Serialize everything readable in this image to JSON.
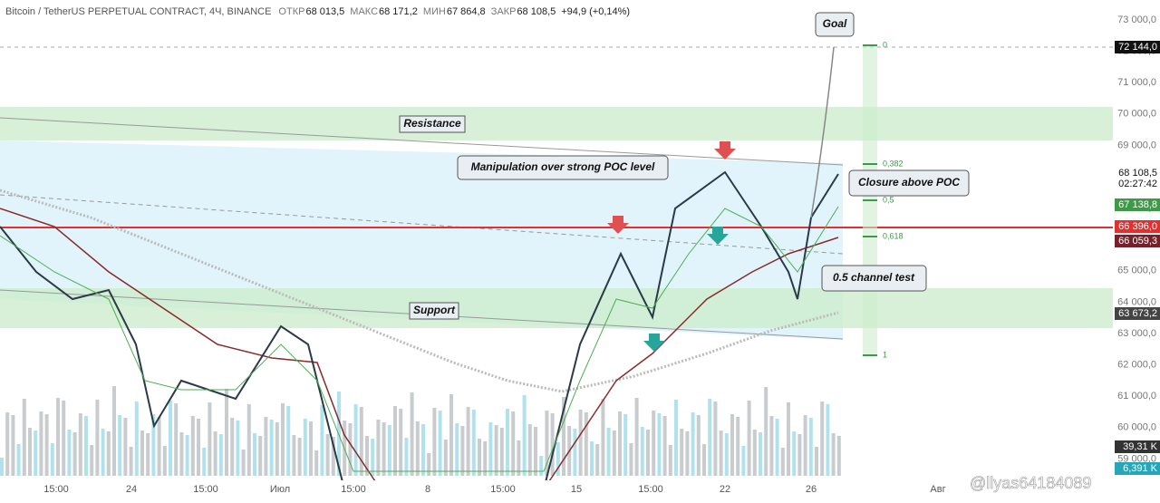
{
  "header": {
    "symbol": "Bitcoin / TetherUS PERPETUAL CONTRACT, 4Ч, BINANCE",
    "fields": [
      {
        "label": "ОТКР",
        "value": "68 013,5"
      },
      {
        "label": "МАКС",
        "value": "68 171,2"
      },
      {
        "label": "МИН",
        "value": "67 864,8"
      },
      {
        "label": "ЗАКР",
        "value": "68 108,5"
      },
      {
        "label": "",
        "value": "+94,9 (+0,14%)"
      }
    ]
  },
  "price_axis": [
    "73 000,0",
    "72 000,0",
    "71 000,0",
    "70 000,0",
    "69 000,0",
    "68 000,0",
    "67 000,0",
    "66 000,0",
    "65 000,0",
    "64 000,0",
    "63 000,0",
    "62 000,0",
    "61 000,0",
    "60 000,0",
    "59 000,0"
  ],
  "price_tags": [
    "72 144,0",
    "68 108,5",
    "02:27:42",
    "67 138,8",
    "66 396,0",
    "66 059,3",
    "63 673,2",
    "39,31 K",
    "6,391 K"
  ],
  "time_axis": [
    "15:00",
    "24",
    "15:00",
    "Июл",
    "15:00",
    "8",
    "15:00",
    "15",
    "15:00",
    "22",
    "26",
    "Авг"
  ],
  "fib_levels": [
    "0",
    "0,382",
    "0,5",
    "0,618",
    "1"
  ],
  "annotations": {
    "goal": "Goal",
    "resistance": "Resistance",
    "manipulation": "Manipulation over strong POC level",
    "closure": "Closure above POC",
    "support": "Support",
    "channel_test": "0.5 channel test"
  },
  "watermark": "@llyas64184089"
}
